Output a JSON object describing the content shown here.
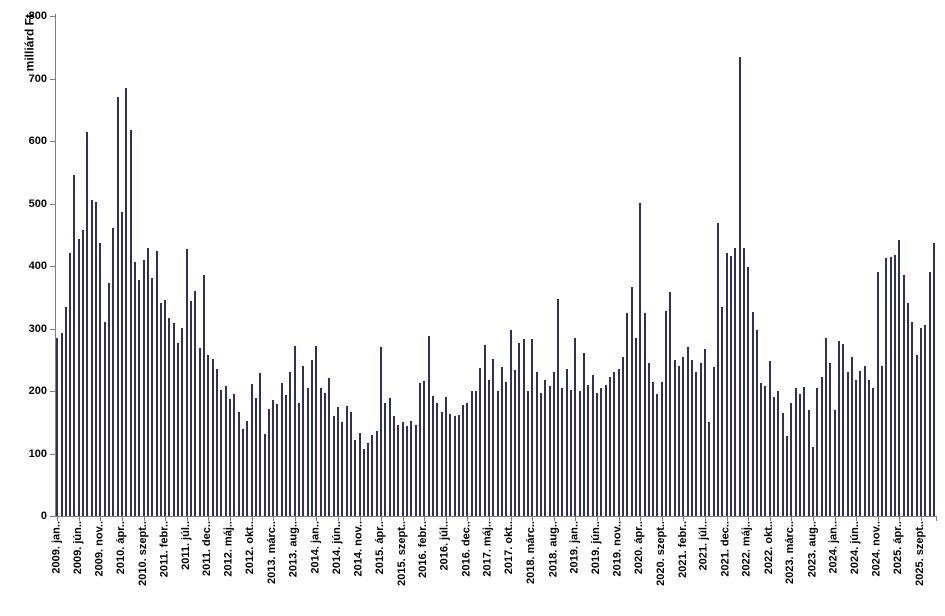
{
  "chart_data": {
    "type": "bar",
    "title": "",
    "xlabel": "",
    "ylabel": "milliárd Ft",
    "ylim": [
      0,
      800
    ],
    "y_ticks": [
      0,
      100,
      200,
      300,
      400,
      500,
      600,
      700,
      800
    ],
    "grid": "off",
    "legend": "none",
    "bar_color": "#312F5C",
    "axis_color": "#808080",
    "x_unit": "month",
    "x_start": "2009. jan",
    "x_end": "2025. dec",
    "x_tick_every": 5,
    "x_tick_labels": [
      "2009. jan..",
      "2009. jún..",
      "2009. nov..",
      "2010. ápr..",
      "2010. szept..",
      "2011. febr..",
      "2011. júl..",
      "2011. dec..",
      "2012. máj..",
      "2012. okt..",
      "2013. márc..",
      "2013. aug..",
      "2014. jan..",
      "2014. jún..",
      "2014. nov..",
      "2015. ápr..",
      "2015. szept..",
      "2016. febr..",
      "2016. júl..",
      "2016. dec..",
      "2017. máj..",
      "2017. okt..",
      "2018. márc..",
      "2018. aug..",
      "2019. jan..",
      "2019. jún..",
      "2019. nov..",
      "2020. ápr..",
      "2020. szept..",
      "2021. febr..",
      "2021. júl..",
      "2021. dec..",
      "2022. máj..",
      "2022. okt..",
      "2023. márc..",
      "2023. aug..",
      "2024. jan..",
      "2024. jún..",
      "2024. nov..",
      "2025. ápr..",
      "2025. szept.."
    ],
    "values": [
      285,
      292,
      335,
      420,
      546,
      443,
      458,
      614,
      505,
      502,
      436,
      310,
      372,
      461,
      670,
      487,
      685,
      617,
      407,
      378,
      410,
      428,
      380,
      424,
      340,
      346,
      316,
      308,
      276,
      300,
      427,
      344,
      360,
      268,
      385,
      258,
      251,
      235,
      202,
      208,
      187,
      195,
      167,
      139,
      152,
      211,
      189,
      228,
      131,
      171,
      186,
      179,
      213,
      194,
      230,
      272,
      180,
      240,
      205,
      250,
      272,
      205,
      196,
      221,
      160,
      175,
      150,
      176,
      166,
      122,
      133,
      107,
      117,
      130,
      136,
      270,
      180,
      188,
      160,
      145,
      150,
      144,
      152,
      146,
      213,
      216,
      288,
      192,
      180,
      167,
      190,
      163,
      160,
      162,
      177,
      180,
      200,
      200,
      237,
      274,
      218,
      251,
      200,
      238,
      215,
      298,
      234,
      276,
      283,
      200,
      283,
      230,
      196,
      218,
      208,
      230,
      347,
      205,
      235,
      202,
      284,
      200,
      260,
      210,
      225,
      196,
      205,
      210,
      222,
      230,
      235,
      255,
      325,
      366,
      285,
      501,
      325,
      245,
      215,
      195,
      215,
      328,
      358,
      250,
      240,
      255,
      270,
      250,
      230,
      245,
      267,
      150,
      239,
      468,
      335,
      420,
      416,
      429,
      735,
      428,
      398,
      327,
      297,
      213,
      208,
      248,
      191,
      200,
      164,
      128,
      180,
      205,
      195,
      206,
      170,
      110,
      205,
      222,
      285,
      245,
      170,
      280,
      275,
      230,
      255,
      218,
      232,
      240,
      218,
      205,
      390,
      240,
      413,
      415,
      418,
      442,
      385,
      340,
      310,
      257,
      300,
      305,
      390,
      437
    ]
  }
}
